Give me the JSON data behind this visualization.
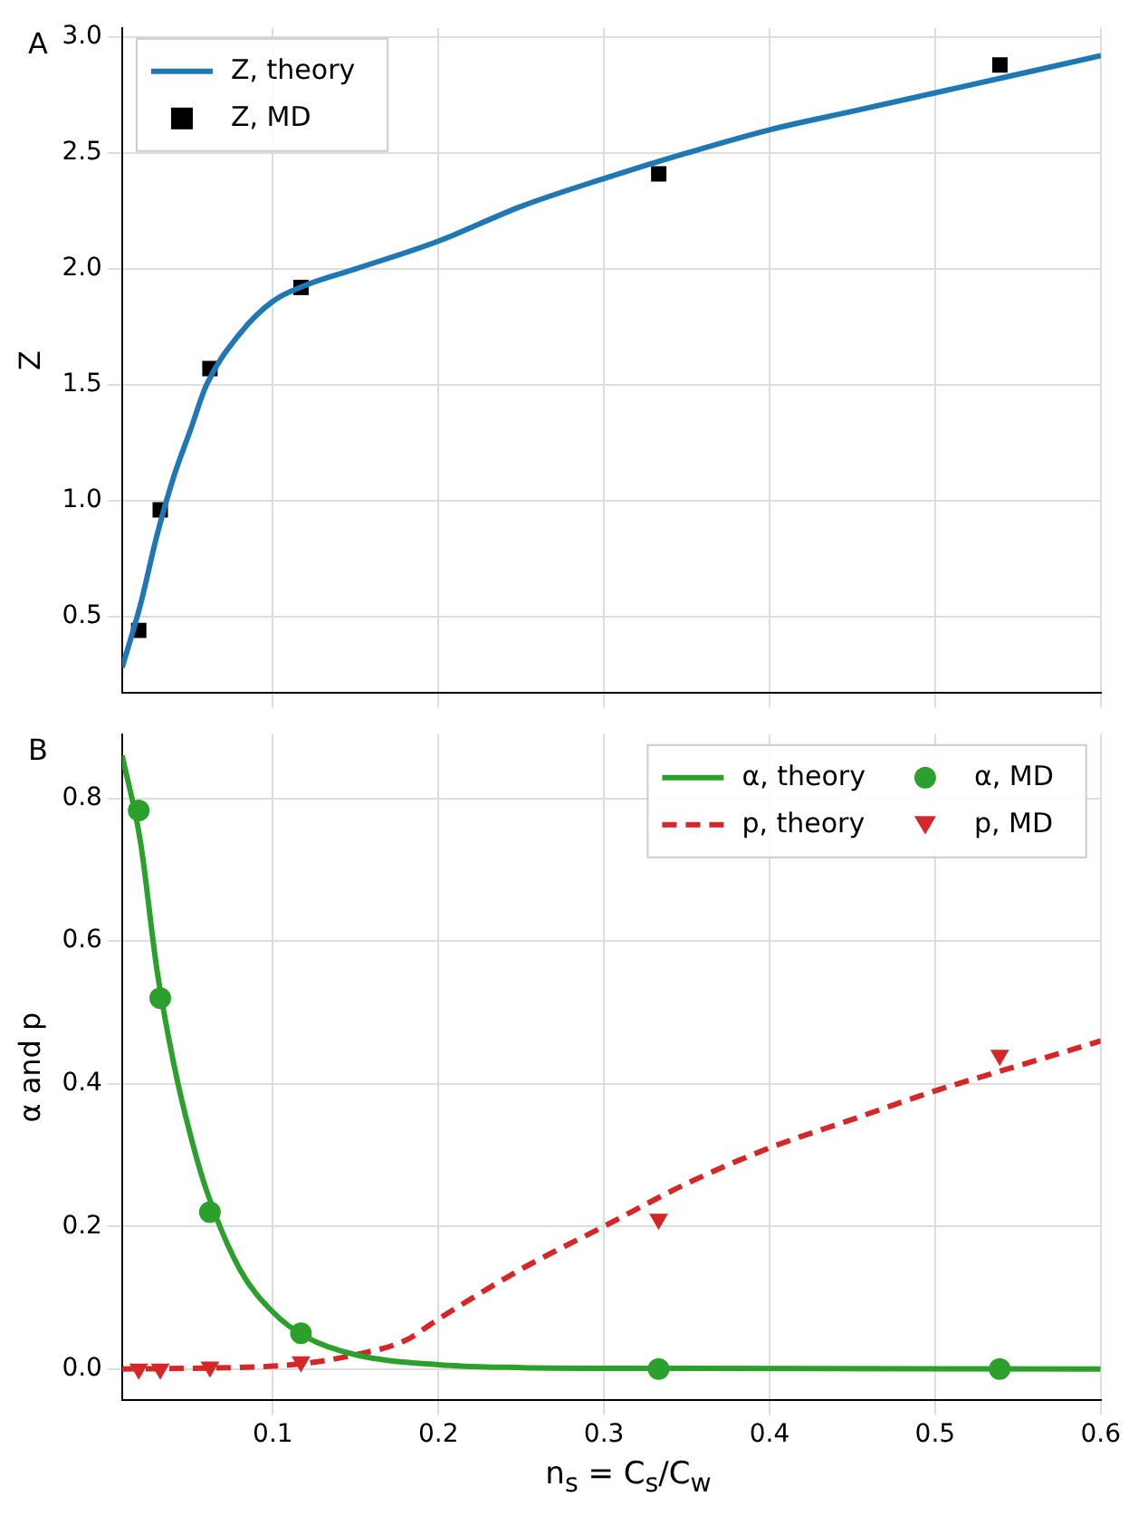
{
  "chart_data": [
    {
      "type": "line",
      "annotations": [
        "A"
      ],
      "ylabel": "Z",
      "xlim": [
        0.009,
        0.6
      ],
      "xticks": [
        0.1,
        0.2,
        0.3,
        0.4,
        0.5,
        0.6
      ],
      "ylim": [
        0.17,
        3.04
      ],
      "yticks": [
        0.5,
        {
          "value": 1,
          "label": "1.0"
        },
        1.5,
        {
          "value": 2,
          "label": "2.0"
        },
        2.5,
        {
          "value": 3,
          "label": "3.0"
        }
      ],
      "tick_labels": "y",
      "grid": true,
      "legend": "top left",
      "series": [
        {
          "name": "Z, theory",
          "color": "#1f77b4",
          "line_style": "solid",
          "marker": "none",
          "x": [
            0.009,
            0.02,
            0.03,
            0.04,
            0.05,
            0.06,
            0.08,
            0.1,
            0.12,
            0.15,
            0.2,
            0.25,
            0.3,
            0.35,
            0.4,
            0.45,
            0.5,
            0.55,
            0.6
          ],
          "values": [
            0.28,
            0.55,
            0.85,
            1.1,
            1.3,
            1.5,
            1.72,
            1.86,
            1.93,
            2.0,
            2.12,
            2.27,
            2.39,
            2.5,
            2.6,
            2.68,
            2.76,
            2.84,
            2.92
          ]
        },
        {
          "name": "Z, MD",
          "type": "scatter",
          "color": "#000000",
          "marker": "square",
          "x": [
            0.019,
            0.032,
            0.062,
            0.117,
            0.333,
            0.539
          ],
          "values": [
            0.44,
            0.96,
            1.57,
            1.92,
            2.41,
            2.88
          ]
        }
      ]
    },
    {
      "type": "line",
      "annotations": [
        "B"
      ],
      "xlabel": "n$_{s}$ = C$_{s}$/C$_{w}$",
      "ylabel": "α and p",
      "xlim": [
        0.009,
        0.6
      ],
      "xticks": [
        0.1,
        0.2,
        0.3,
        0.4,
        0.5,
        0.6
      ],
      "ylim": [
        -0.044,
        0.89
      ],
      "yticks": [
        {
          "value": 0,
          "label": "0.0"
        },
        0.2,
        0.4,
        0.6,
        0.8
      ],
      "grid": true,
      "legend": "top right",
      "series": [
        {
          "name": "α, theory",
          "color": "#2ca02c",
          "line_style": "solid",
          "marker": "none",
          "x": [
            0.009,
            0.02,
            0.03,
            0.04,
            0.05,
            0.06,
            0.08,
            0.1,
            0.12,
            0.15,
            0.2,
            0.25,
            0.3,
            0.6
          ],
          "values": [
            0.86,
            0.74,
            0.56,
            0.43,
            0.33,
            0.25,
            0.14,
            0.08,
            0.045,
            0.02,
            0.006,
            0.002,
            0.001,
            0.0
          ]
        },
        {
          "name": "p, theory",
          "color": "#d62728",
          "line_style": "dashed",
          "marker": "none",
          "x": [
            0.009,
            0.05,
            0.1,
            0.12,
            0.15,
            0.18,
            0.2,
            0.25,
            0.3,
            0.35,
            0.4,
            0.45,
            0.5,
            0.55,
            0.6
          ],
          "values": [
            0.0,
            0.001,
            0.004,
            0.008,
            0.02,
            0.04,
            0.07,
            0.14,
            0.2,
            0.26,
            0.31,
            0.35,
            0.39,
            0.425,
            0.46
          ]
        },
        {
          "name": "α, MD",
          "type": "scatter",
          "color": "#2ca02c",
          "marker": "circle",
          "x": [
            0.019,
            0.032,
            0.062,
            0.117,
            0.333,
            0.539
          ],
          "values": [
            0.783,
            0.52,
            0.22,
            0.05,
            0.0,
            0.0
          ]
        },
        {
          "name": "p, MD",
          "type": "scatter",
          "color": "#d62728",
          "marker": "triangle",
          "x": [
            0.019,
            0.032,
            0.062,
            0.117,
            0.333,
            0.539
          ],
          "values": [
            0.0,
            0.0,
            0.003,
            0.01,
            0.21,
            0.44
          ]
        }
      ]
    }
  ]
}
